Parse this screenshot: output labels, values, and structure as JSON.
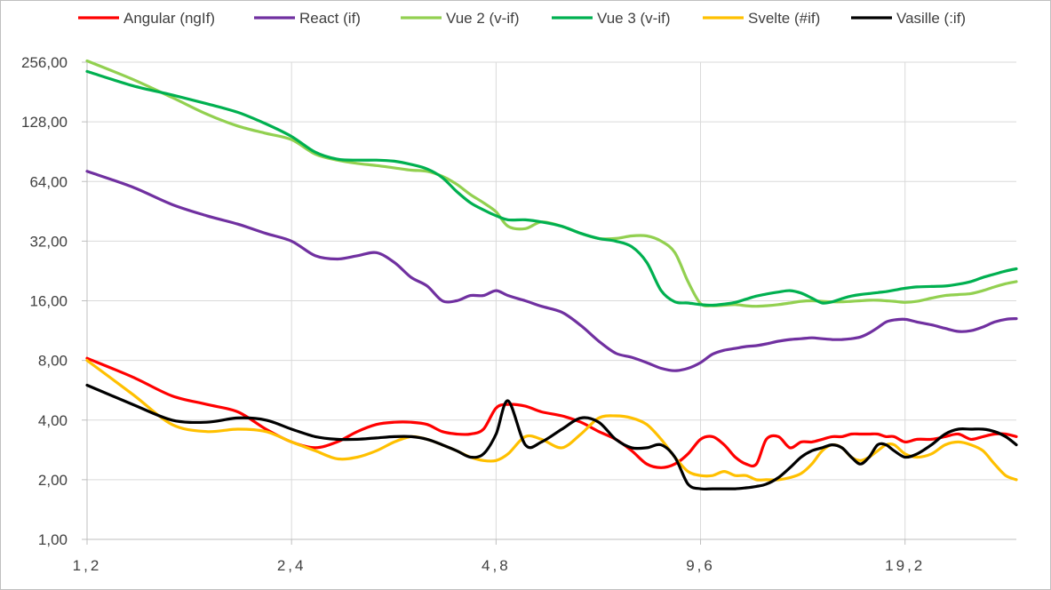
{
  "chart_data": {
    "type": "line",
    "title": "",
    "xlabel": "",
    "ylabel": "",
    "y_scale": "log2",
    "ylim": [
      1,
      256
    ],
    "grid": "on",
    "legend_position": "top",
    "x_tick_labels": [
      "1,2",
      "2,4",
      "4,8",
      "9,6",
      "19,2"
    ],
    "y_tick_labels": [
      "1,00",
      "2,00",
      "4,00",
      "8,00",
      "16,00",
      "32,00",
      "64,00",
      "128,00",
      "256,00"
    ],
    "x": [
      1.2,
      1.4,
      1.6,
      1.8,
      2.0,
      2.2,
      2.4,
      2.6,
      2.8,
      3.0,
      3.2,
      3.4,
      3.6,
      3.8,
      4.0,
      4.2,
      4.4,
      4.6,
      4.8,
      5.0,
      5.3,
      5.6,
      6.0,
      6.4,
      6.8,
      7.2,
      7.6,
      8.0,
      8.4,
      8.8,
      9.2,
      9.6,
      10.0,
      10.4,
      10.8,
      11.2,
      11.6,
      12.0,
      12.5,
      13.0,
      13.5,
      14.0,
      14.5,
      15.0,
      15.5,
      16.0,
      16.5,
      17.0,
      17.5,
      18.0,
      18.5,
      19.2,
      20.0,
      21.0,
      22.0,
      23.0,
      24.0,
      25.0,
      26.0,
      27.0,
      28.0
    ],
    "series": [
      {
        "name": "Angular (ngIf)",
        "color": "#ff0000",
        "values": [
          8.2,
          6.6,
          5.3,
          4.8,
          4.4,
          3.6,
          3.1,
          2.9,
          3.1,
          3.5,
          3.8,
          3.9,
          3.9,
          3.8,
          3.5,
          3.4,
          3.4,
          3.6,
          4.6,
          4.8,
          4.7,
          4.4,
          4.2,
          3.9,
          3.5,
          3.2,
          2.8,
          2.4,
          2.3,
          2.4,
          2.7,
          3.2,
          3.3,
          3.0,
          2.6,
          2.4,
          2.4,
          3.2,
          3.3,
          2.9,
          3.1,
          3.1,
          3.2,
          3.3,
          3.3,
          3.4,
          3.4,
          3.4,
          3.4,
          3.3,
          3.3,
          3.1,
          3.2,
          3.2,
          3.3,
          3.4,
          3.2,
          3.3,
          3.4,
          3.4,
          3.3
        ]
      },
      {
        "name": "React (if)",
        "color": "#7030a0",
        "values": [
          72,
          60,
          49,
          43,
          39,
          35,
          32,
          27,
          26,
          27,
          28,
          25,
          21,
          19,
          16,
          16,
          17,
          17,
          18,
          17,
          16,
          15,
          14,
          12,
          10,
          8.7,
          8.3,
          7.8,
          7.3,
          7.1,
          7.3,
          7.8,
          8.6,
          9.0,
          9.2,
          9.4,
          9.5,
          9.7,
          10.0,
          10.2,
          10.3,
          10.4,
          10.3,
          10.2,
          10.2,
          10.3,
          10.5,
          11.0,
          11.7,
          12.5,
          12.8,
          12.9,
          12.5,
          12.1,
          11.6,
          11.2,
          11.3,
          11.8,
          12.5,
          12.9,
          13.0
        ]
      },
      {
        "name": "Vue 2 (v-if)",
        "color": "#92d050",
        "values": [
          260,
          210,
          170,
          140,
          122,
          112,
          104,
          88,
          82,
          79,
          77,
          75,
          73,
          72,
          68,
          62,
          55,
          50,
          45,
          38,
          37,
          40,
          38,
          35,
          33,
          33,
          34,
          34,
          32,
          28,
          20,
          15.5,
          15.1,
          15.2,
          15.3,
          15.1,
          15.0,
          15.1,
          15.3,
          15.6,
          15.9,
          16.0,
          15.9,
          15.8,
          15.8,
          15.9,
          16.0,
          16.1,
          16.1,
          16.0,
          15.9,
          15.7,
          15.9,
          16.5,
          17.0,
          17.2,
          17.4,
          18.0,
          18.8,
          19.5,
          20.0
        ]
      },
      {
        "name": "Vue 3 (v-if)",
        "color": "#00b050",
        "values": [
          230,
          195,
          175,
          158,
          143,
          125,
          108,
          90,
          83,
          82,
          82,
          81,
          78,
          74,
          67,
          57,
          50,
          46,
          43,
          41,
          41,
          40,
          38,
          35,
          33,
          32,
          30,
          25,
          18,
          15.8,
          15.6,
          15.3,
          15.2,
          15.4,
          15.7,
          16.3,
          16.9,
          17.3,
          17.7,
          18.0,
          17.5,
          16.5,
          15.6,
          15.8,
          16.4,
          16.9,
          17.2,
          17.4,
          17.6,
          17.8,
          18.1,
          18.5,
          18.8,
          18.9,
          19.0,
          19.4,
          20.0,
          21.0,
          21.8,
          22.6,
          23.2
        ]
      },
      {
        "name": "Svelte (#if)",
        "color": "#ffc000",
        "values": [
          8.0,
          5.4,
          3.8,
          3.5,
          3.6,
          3.5,
          3.1,
          2.8,
          2.55,
          2.6,
          2.8,
          3.1,
          3.3,
          3.2,
          3.0,
          2.8,
          2.6,
          2.5,
          2.5,
          2.7,
          3.3,
          3.2,
          2.9,
          3.4,
          4.1,
          4.2,
          4.1,
          3.8,
          3.2,
          2.6,
          2.2,
          2.1,
          2.1,
          2.2,
          2.1,
          2.1,
          2.0,
          2.0,
          2.0,
          2.05,
          2.15,
          2.4,
          2.8,
          3.0,
          2.9,
          2.6,
          2.5,
          2.6,
          2.8,
          3.0,
          3.0,
          2.7,
          2.6,
          2.7,
          3.0,
          3.1,
          3.0,
          2.8,
          2.4,
          2.1,
          2.0
        ]
      },
      {
        "name": "Vasille (:if)",
        "color": "#000000",
        "values": [
          6.0,
          4.8,
          4.0,
          3.9,
          4.1,
          4.0,
          3.6,
          3.3,
          3.2,
          3.2,
          3.25,
          3.3,
          3.3,
          3.2,
          3.0,
          2.8,
          2.6,
          2.7,
          3.4,
          5.0,
          3.0,
          3.1,
          3.6,
          4.1,
          3.9,
          3.2,
          2.9,
          2.9,
          3.0,
          2.6,
          1.9,
          1.8,
          1.8,
          1.8,
          1.8,
          1.82,
          1.85,
          1.9,
          2.05,
          2.3,
          2.6,
          2.8,
          2.9,
          3.0,
          2.9,
          2.6,
          2.4,
          2.6,
          3.0,
          3.0,
          2.8,
          2.6,
          2.7,
          3.0,
          3.4,
          3.6,
          3.6,
          3.6,
          3.5,
          3.3,
          3.0
        ]
      }
    ]
  }
}
